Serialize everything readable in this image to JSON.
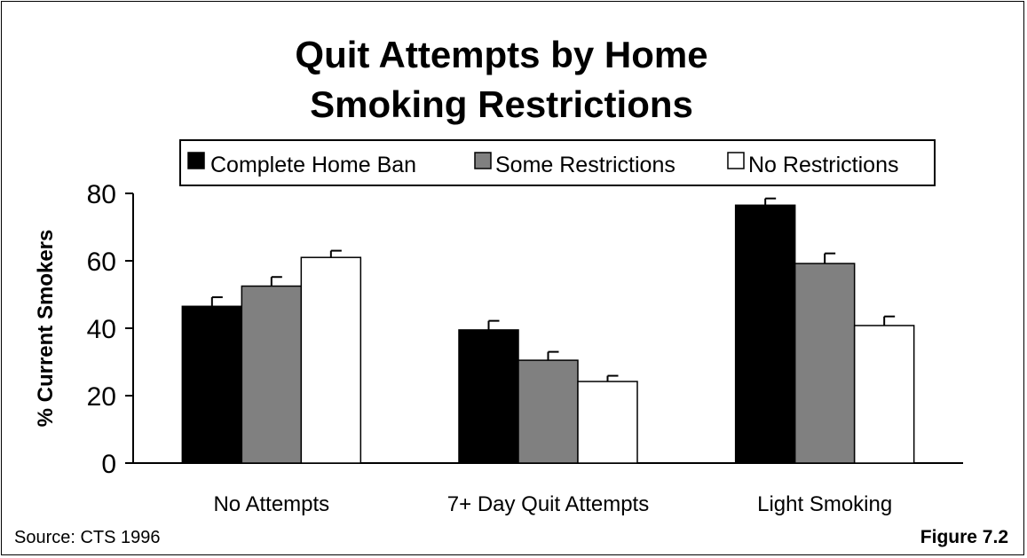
{
  "chart_data": {
    "type": "bar",
    "title": "Quit Attempts by Home Smoking Restrictions",
    "title_lines": [
      "Quit Attempts by Home",
      "Smoking Restrictions"
    ],
    "ylabel": "% Current Smokers",
    "xlabel": "",
    "ylim": [
      0,
      80
    ],
    "yticks": [
      0,
      20,
      40,
      60,
      80
    ],
    "grid": false,
    "legend_position": "top",
    "categories": [
      "No Attempts",
      "7+ Day Quit Attempts",
      "Light Smoking"
    ],
    "series": [
      {
        "name": "Complete Home Ban",
        "color": "#000000",
        "values": [
          46.5,
          39.5,
          76.5
        ],
        "error": [
          2.7,
          2.7,
          2.0
        ]
      },
      {
        "name": "Some Restrictions",
        "color": "#808080",
        "values": [
          52.5,
          30.5,
          59.2
        ],
        "error": [
          2.7,
          2.5,
          3.0
        ]
      },
      {
        "name": "No Restrictions",
        "color": "#ffffff",
        "values": [
          61.0,
          24.2,
          40.8
        ],
        "error": [
          2.0,
          1.7,
          2.7
        ]
      }
    ]
  },
  "footer": {
    "source": "Source:  CTS 1996",
    "figure": "Figure 7.2"
  }
}
